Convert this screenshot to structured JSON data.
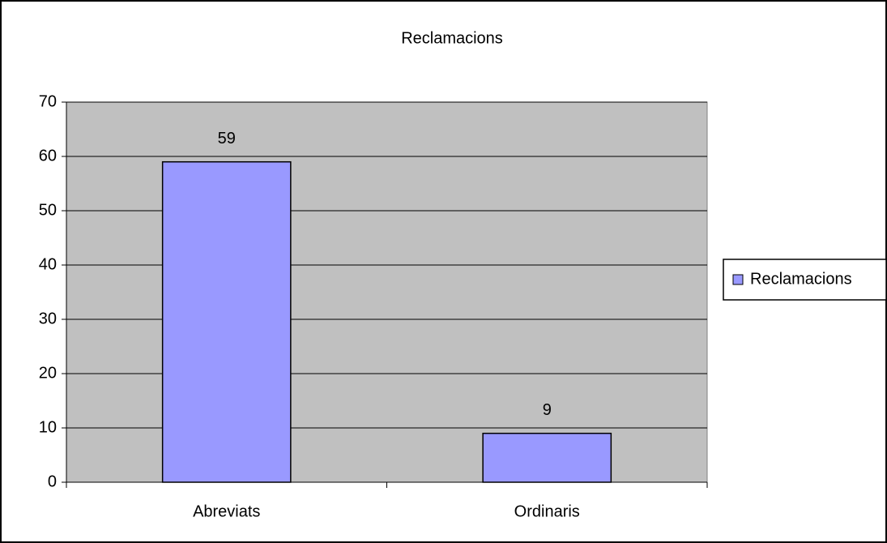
{
  "chart_data": {
    "type": "bar",
    "title": "Reclamacions",
    "categories": [
      "Abreviats",
      "Ordinaris"
    ],
    "series": [
      {
        "name": "Reclamacions",
        "color": "#9999ff",
        "values": [
          59,
          9
        ]
      }
    ],
    "ylim": [
      0,
      70
    ],
    "yticks": [
      0,
      10,
      20,
      30,
      40,
      50,
      60,
      70
    ],
    "grid": true,
    "legend": "right"
  }
}
